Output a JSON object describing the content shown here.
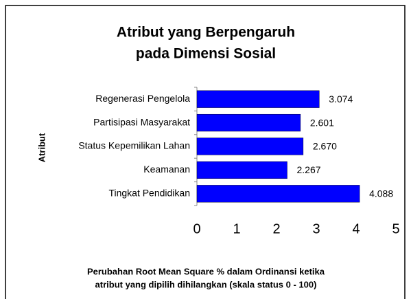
{
  "chart_data": {
    "type": "bar",
    "orientation": "horizontal",
    "title": [
      "Atribut yang Berpengaruh",
      "pada Dimensi Sosial"
    ],
    "ylabel": "Atribut",
    "xlabel": [
      "Perubahan Root Mean Square % dalam Ordinansi ketika",
      "atribut yang dipilih dihilangkan (skala status 0 - 100)"
    ],
    "categories": [
      "Regenerasi Pengelola",
      "Partisipasi Masyarakat",
      "Status Kepemilikan Lahan",
      "Keamanan",
      "Tingkat Pendidikan"
    ],
    "values": [
      3.074,
      2.601,
      2.67,
      2.267,
      4.088
    ],
    "value_labels": [
      "3.074",
      "2.601",
      "2.670",
      "2.267",
      "4.088"
    ],
    "color": "#0000ff",
    "xlim": [
      0,
      5
    ],
    "xticks": [
      0,
      1,
      2,
      3,
      4,
      5
    ],
    "grid": false
  }
}
